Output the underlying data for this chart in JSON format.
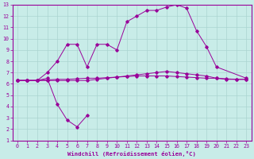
{
  "xlabel": "Windchill (Refroidissement éolien,°C)",
  "bg_color": "#c8ece8",
  "grid_color": "#aad4d0",
  "line_color": "#990099",
  "xlim": [
    -0.5,
    23.5
  ],
  "ylim": [
    1,
    13
  ],
  "xticks": [
    0,
    1,
    2,
    3,
    4,
    5,
    6,
    7,
    8,
    9,
    10,
    11,
    12,
    13,
    14,
    15,
    16,
    17,
    18,
    19,
    20,
    21,
    22,
    23
  ],
  "yticks": [
    1,
    2,
    3,
    4,
    5,
    6,
    7,
    8,
    9,
    10,
    11,
    12,
    13
  ],
  "series1_x": [
    0,
    1,
    2,
    3,
    4,
    5,
    6,
    7
  ],
  "series1_y": [
    6.3,
    6.3,
    6.3,
    6.5,
    4.2,
    2.8,
    2.2,
    3.2
  ],
  "series2_x": [
    0,
    1,
    2,
    3,
    4,
    5,
    6,
    7,
    8,
    9,
    10,
    11,
    12,
    13,
    14,
    15,
    16,
    17,
    18,
    19,
    20,
    21,
    22,
    23
  ],
  "series2_y": [
    6.3,
    6.3,
    6.3,
    6.35,
    6.4,
    6.4,
    6.45,
    6.5,
    6.5,
    6.55,
    6.6,
    6.65,
    6.7,
    6.7,
    6.7,
    6.7,
    6.65,
    6.6,
    6.55,
    6.5,
    6.5,
    6.45,
    6.4,
    6.4
  ],
  "series3_x": [
    0,
    1,
    2,
    3,
    4,
    5,
    6,
    7,
    8,
    9,
    10,
    11,
    12,
    13,
    14,
    15,
    16,
    17,
    18,
    19,
    20,
    23
  ],
  "series3_y": [
    6.3,
    6.3,
    6.3,
    7.0,
    8.0,
    9.5,
    9.5,
    7.5,
    9.5,
    9.5,
    9.0,
    11.5,
    12.0,
    12.5,
    12.5,
    12.8,
    13.0,
    12.7,
    10.7,
    9.3,
    7.5,
    6.5
  ],
  "series4_x": [
    0,
    1,
    2,
    3,
    4,
    5,
    6,
    7,
    8,
    9,
    10,
    11,
    12,
    13,
    14,
    15,
    16,
    17,
    18,
    19,
    20,
    21,
    22,
    23
  ],
  "series4_y": [
    6.3,
    6.3,
    6.3,
    6.3,
    6.3,
    6.3,
    6.3,
    6.3,
    6.4,
    6.5,
    6.6,
    6.7,
    6.8,
    6.9,
    7.0,
    7.1,
    7.0,
    6.9,
    6.8,
    6.7,
    6.5,
    6.4,
    6.4,
    6.4
  ]
}
